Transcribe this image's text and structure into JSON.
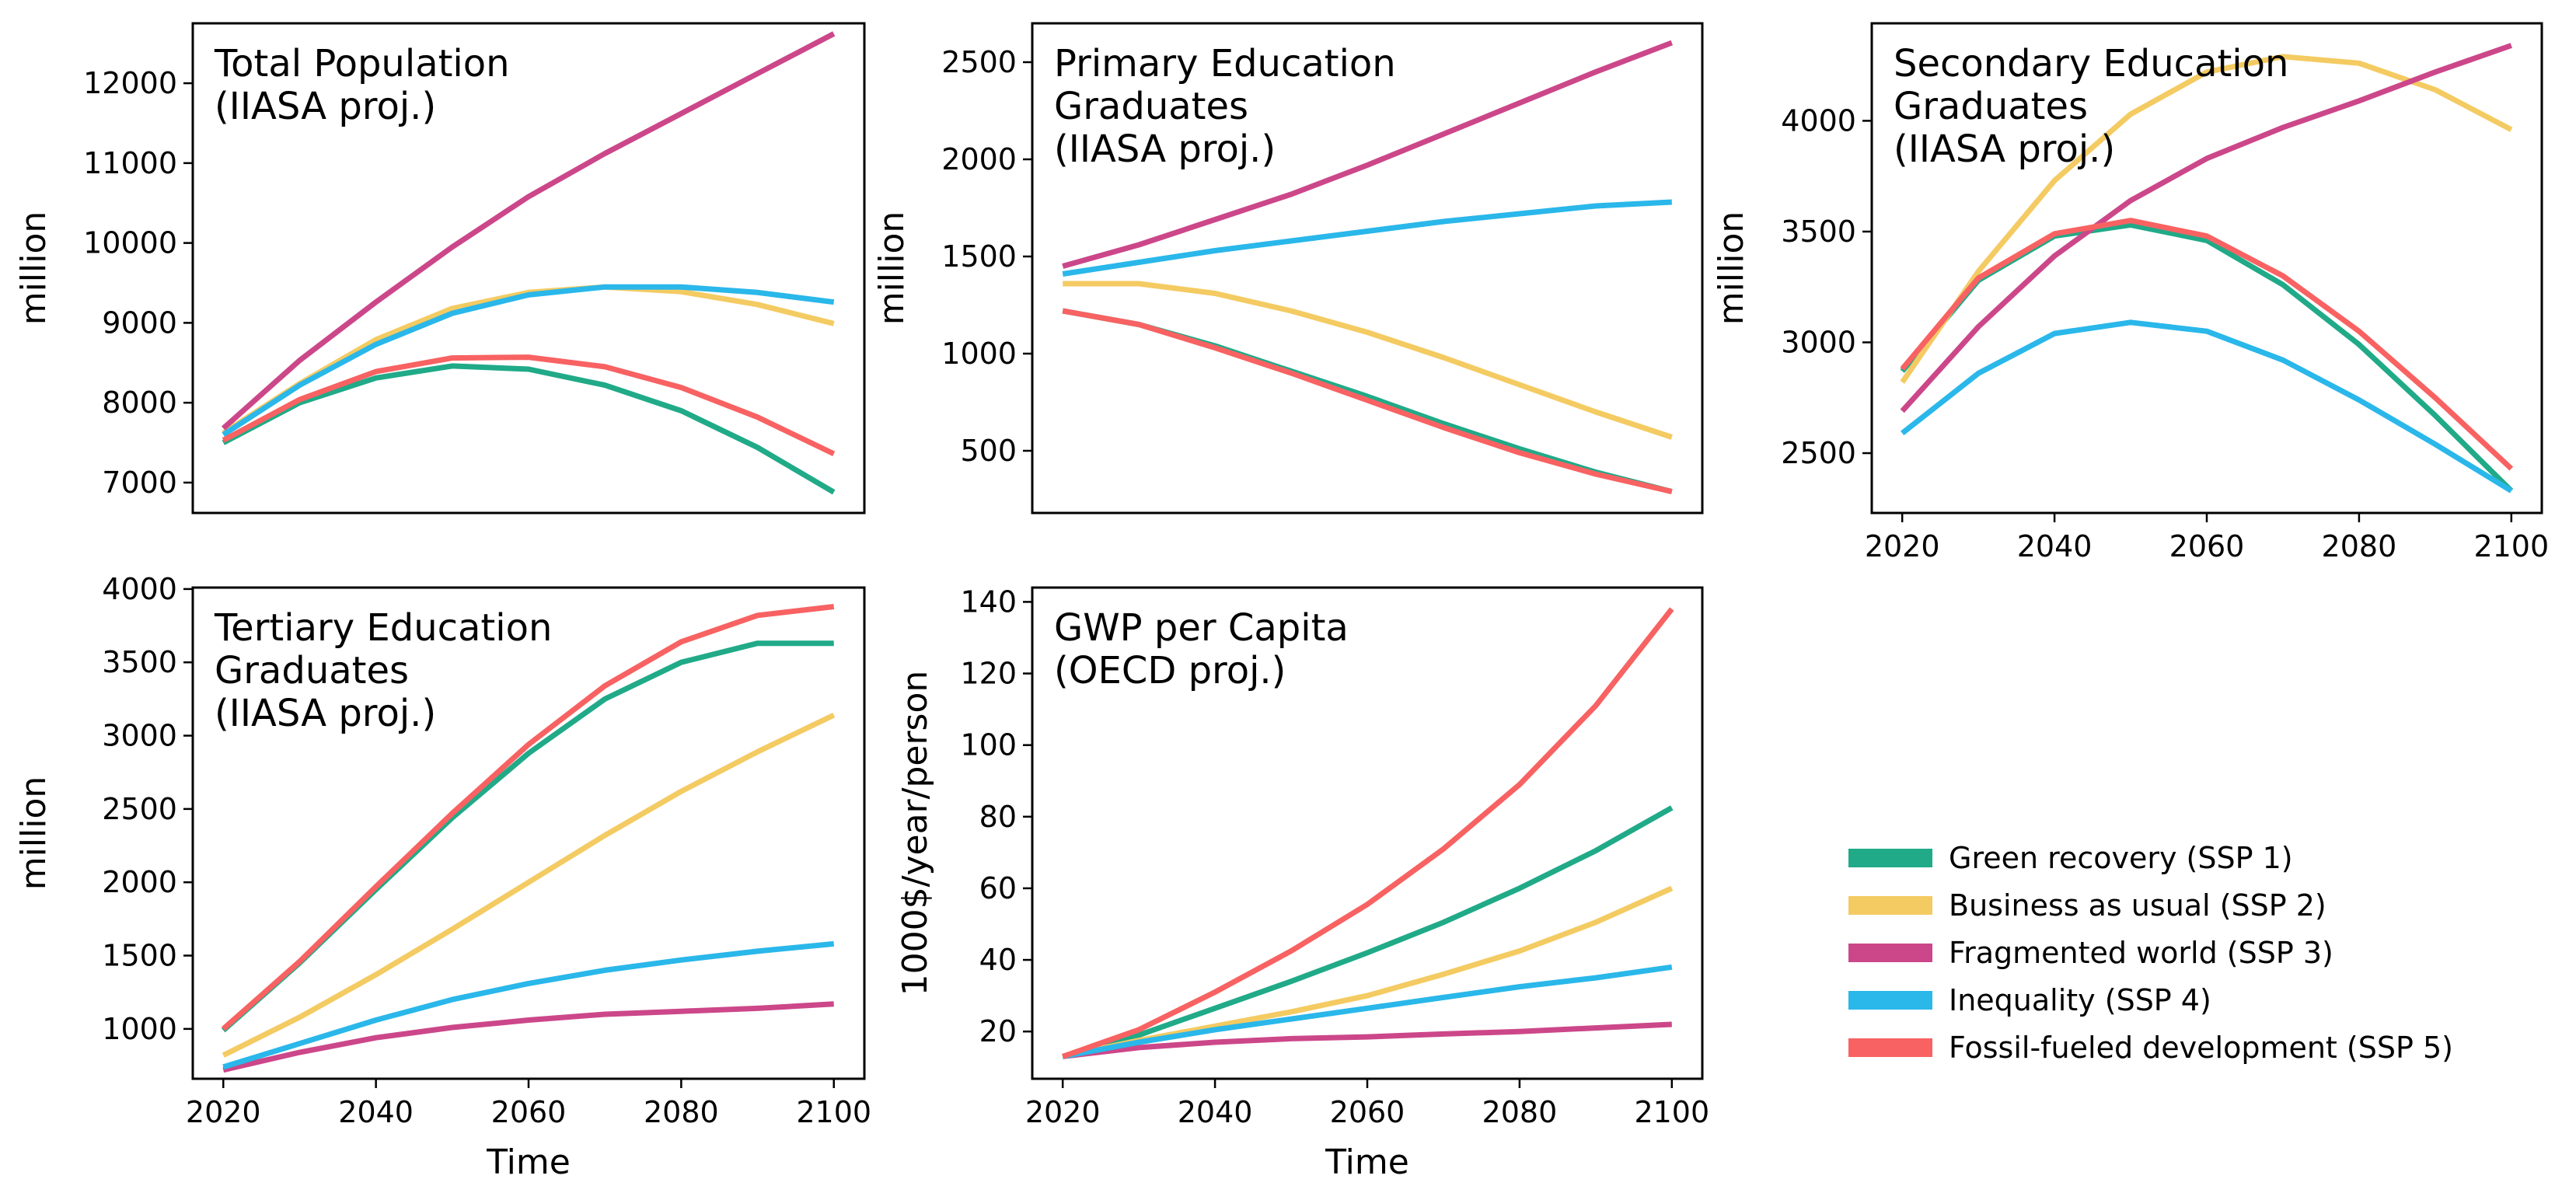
{
  "colors": {
    "Green recovery (SSP 1)": "#20aa88",
    "Business as usual (SSP 2)": "#f4cb62",
    "Fragmented world (SSP 3)": "#cc4789",
    "Inequality (SSP 4)": "#2ab7ea",
    "Fossil-fueled development (SSP 5)": "#f86262"
  },
  "legend": {
    "items": [
      "Green recovery (SSP 1)",
      "Business as usual (SSP 2)",
      "Fragmented world (SSP 3)",
      "Inequality (SSP 4)",
      "Fossil-fueled development (SSP 5)"
    ]
  },
  "chart_data": [
    {
      "type": "line",
      "title_lines": [
        "Total Population",
        "(IIASA proj.)"
      ],
      "xlabel": "",
      "ylabel": "million",
      "xlim": [
        2016,
        2104
      ],
      "ylim": [
        6620,
        12750
      ],
      "xticks": [],
      "yticks": [
        7000,
        8000,
        9000,
        10000,
        11000,
        12000
      ],
      "x": [
        2020,
        2030,
        2040,
        2050,
        2060,
        2070,
        2080,
        2090,
        2100
      ],
      "series": [
        {
          "name": "Green recovery (SSP 1)",
          "values": [
            7500,
            8000,
            8310,
            8460,
            8420,
            8220,
            7900,
            7440,
            6880
          ]
        },
        {
          "name": "Business as usual (SSP 2)",
          "values": [
            7620,
            8240,
            8790,
            9180,
            9380,
            9450,
            9390,
            9230,
            8990
          ]
        },
        {
          "name": "Fragmented world (SSP 3)",
          "values": [
            7680,
            8530,
            9260,
            9950,
            10580,
            11120,
            11620,
            12120,
            12620
          ]
        },
        {
          "name": "Inequality (SSP 4)",
          "values": [
            7600,
            8220,
            8730,
            9120,
            9350,
            9450,
            9450,
            9380,
            9260
          ]
        },
        {
          "name": "Fossil-fueled development (SSP 5)",
          "values": [
            7530,
            8040,
            8390,
            8560,
            8570,
            8450,
            8190,
            7820,
            7360
          ]
        }
      ]
    },
    {
      "type": "line",
      "title_lines": [
        "Primary Education",
        "Graduates",
        "(IIASA proj.)"
      ],
      "xlabel": "",
      "ylabel": "million",
      "xlim": [
        2016,
        2104
      ],
      "ylim": [
        180,
        2700
      ],
      "xticks": [],
      "yticks": [
        500,
        1000,
        1500,
        2000,
        2500
      ],
      "x": [
        2020,
        2030,
        2040,
        2050,
        2060,
        2070,
        2080,
        2090,
        2100
      ],
      "series": [
        {
          "name": "Green recovery (SSP 1)",
          "values": [
            1220,
            1150,
            1040,
            910,
            780,
            640,
            510,
            390,
            290
          ]
        },
        {
          "name": "Business as usual (SSP 2)",
          "values": [
            1360,
            1360,
            1310,
            1220,
            1110,
            980,
            840,
            700,
            570
          ]
        },
        {
          "name": "Fragmented world (SSP 3)",
          "values": [
            1450,
            1560,
            1690,
            1820,
            1970,
            2130,
            2290,
            2450,
            2600
          ]
        },
        {
          "name": "Inequality (SSP 4)",
          "values": [
            1410,
            1470,
            1530,
            1580,
            1630,
            1680,
            1720,
            1760,
            1780
          ]
        },
        {
          "name": "Fossil-fueled development (SSP 5)",
          "values": [
            1220,
            1150,
            1030,
            900,
            760,
            620,
            490,
            380,
            290
          ]
        }
      ]
    },
    {
      "type": "line",
      "title_lines": [
        "Secondary Education",
        "Graduates",
        "(IIASA proj.)"
      ],
      "xlabel": "",
      "ylabel": "million",
      "xlim": [
        2016,
        2104
      ],
      "ylim": [
        2230,
        4440
      ],
      "xticks": [
        2020,
        2040,
        2060,
        2080,
        2100
      ],
      "yticks": [
        2500,
        3000,
        3500,
        4000
      ],
      "x": [
        2020,
        2030,
        2040,
        2050,
        2060,
        2070,
        2080,
        2090,
        2100
      ],
      "series": [
        {
          "name": "Green recovery (SSP 1)",
          "values": [
            2870,
            3280,
            3480,
            3530,
            3460,
            3260,
            2990,
            2670,
            2330
          ]
        },
        {
          "name": "Business as usual (SSP 2)",
          "values": [
            2820,
            3320,
            3730,
            4030,
            4220,
            4290,
            4260,
            4140,
            3960
          ]
        },
        {
          "name": "Fragmented world (SSP 3)",
          "values": [
            2690,
            3070,
            3390,
            3640,
            3830,
            3970,
            4090,
            4220,
            4340
          ]
        },
        {
          "name": "Inequality (SSP 4)",
          "values": [
            2590,
            2860,
            3040,
            3090,
            3050,
            2920,
            2740,
            2540,
            2330
          ]
        },
        {
          "name": "Fossil-fueled development (SSP 5)",
          "values": [
            2880,
            3290,
            3490,
            3550,
            3480,
            3300,
            3050,
            2750,
            2430
          ]
        }
      ]
    },
    {
      "type": "line",
      "title_lines": [
        "Tertiary Education",
        "Graduates",
        "(IIASA proj.)"
      ],
      "xlabel": "Time",
      "ylabel": "million",
      "xlim": [
        2016,
        2104
      ],
      "ylim": [
        660,
        4010
      ],
      "xticks": [
        2020,
        2040,
        2060,
        2080,
        2100
      ],
      "yticks": [
        1000,
        1500,
        2000,
        2500,
        3000,
        3500,
        4000
      ],
      "x": [
        2020,
        2030,
        2040,
        2050,
        2060,
        2070,
        2080,
        2090,
        2100
      ],
      "series": [
        {
          "name": "Green recovery (SSP 1)",
          "values": [
            990,
            1450,
            1950,
            2440,
            2880,
            3250,
            3500,
            3630,
            3630
          ]
        },
        {
          "name": "Business as usual (SSP 2)",
          "values": [
            820,
            1080,
            1370,
            1680,
            2000,
            2320,
            2620,
            2890,
            3140
          ]
        },
        {
          "name": "Fragmented world (SSP 3)",
          "values": [
            720,
            840,
            940,
            1010,
            1060,
            1100,
            1120,
            1140,
            1170
          ]
        },
        {
          "name": "Inequality (SSP 4)",
          "values": [
            740,
            900,
            1060,
            1200,
            1310,
            1400,
            1470,
            1530,
            1580
          ]
        },
        {
          "name": "Fossil-fueled development (SSP 5)",
          "values": [
            1000,
            1460,
            1970,
            2470,
            2940,
            3340,
            3640,
            3820,
            3880
          ]
        }
      ]
    },
    {
      "type": "line",
      "title_lines": [
        "GWP per Capita",
        "(OECD proj.)"
      ],
      "xlabel": "Time",
      "ylabel": "1000$/year/person",
      "xlim": [
        2016,
        2104
      ],
      "ylim": [
        6.8,
        144
      ],
      "xticks": [
        2020,
        2040,
        2060,
        2080,
        2100
      ],
      "yticks": [
        20,
        40,
        60,
        80,
        100,
        120,
        140
      ],
      "x": [
        2020,
        2030,
        2040,
        2050,
        2060,
        2070,
        2080,
        2090,
        2100
      ],
      "series": [
        {
          "name": "Green recovery (SSP 1)",
          "values": [
            13,
            19,
            26.5,
            34,
            42,
            50.5,
            60,
            70.5,
            82.5
          ]
        },
        {
          "name": "Business as usual (SSP 2)",
          "values": [
            13,
            17.5,
            21.5,
            25.5,
            30,
            36,
            42.5,
            50.5,
            60
          ]
        },
        {
          "name": "Fragmented world (SSP 3)",
          "values": [
            13,
            15.5,
            17,
            18,
            18.5,
            19.3,
            20,
            21,
            22
          ]
        },
        {
          "name": "Inequality (SSP 4)",
          "values": [
            13,
            17,
            20.5,
            23.5,
            26.5,
            29.5,
            32.5,
            35,
            38
          ]
        },
        {
          "name": "Fossil-fueled development (SSP 5)",
          "values": [
            13,
            20.5,
            31,
            42.5,
            55.5,
            71,
            89,
            111,
            138
          ]
        }
      ]
    }
  ]
}
